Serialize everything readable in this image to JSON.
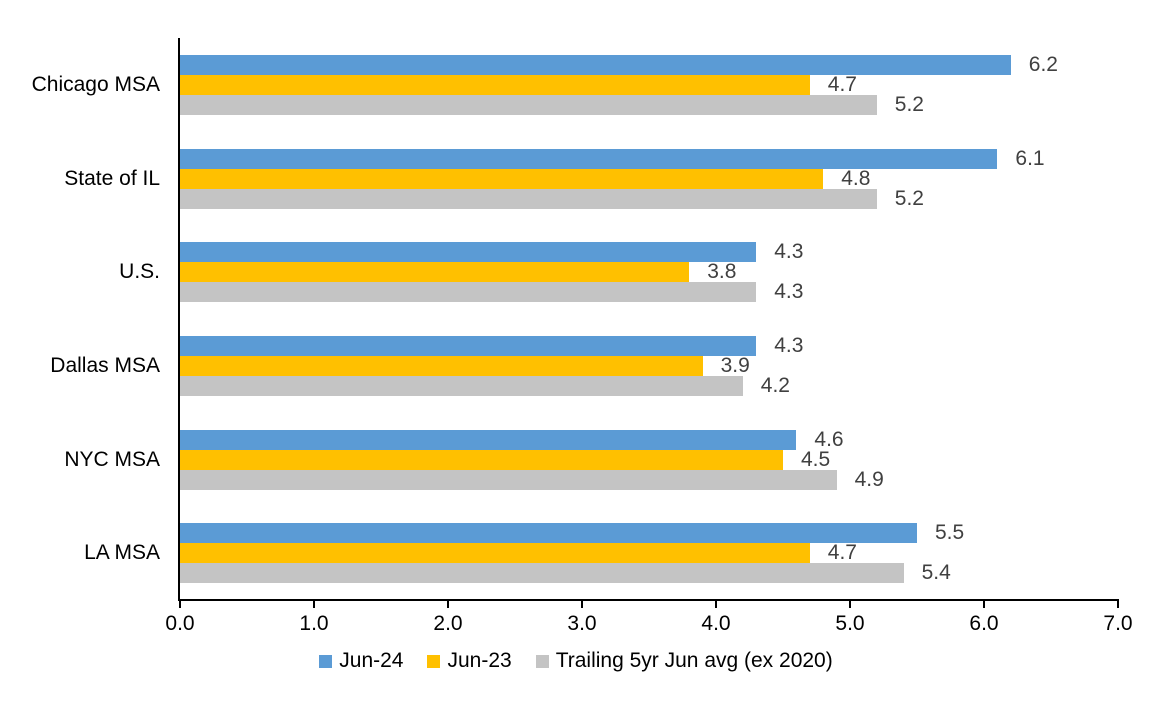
{
  "chart_data": {
    "type": "bar",
    "orientation": "horizontal",
    "title": "",
    "categories": [
      "Chicago MSA",
      "State of IL",
      "U.S.",
      "Dallas MSA",
      "NYC MSA",
      "LA MSA"
    ],
    "series": [
      {
        "name": "Jun-24",
        "color": "#5B9BD5",
        "values": [
          6.2,
          6.1,
          4.3,
          4.3,
          4.6,
          5.5
        ]
      },
      {
        "name": "Jun-23",
        "color": "#FFC000",
        "values": [
          4.7,
          4.8,
          3.8,
          3.9,
          4.5,
          4.7
        ]
      },
      {
        "name": "Trailing 5yr Jun avg (ex 2020)",
        "color": "#C4C4C4",
        "values": [
          5.2,
          5.2,
          4.3,
          4.2,
          4.9,
          5.4
        ]
      }
    ],
    "xlim": [
      0,
      7
    ],
    "x_tick_labels": [
      "0.0",
      "1.0",
      "2.0",
      "3.0",
      "4.0",
      "5.0",
      "6.0",
      "7.0"
    ],
    "xlabel": "",
    "ylabel": "",
    "grid": false,
    "legend_position": "bottom",
    "data_labels_shown": true,
    "colors": {
      "axis": "#000000",
      "data_label": "#404040",
      "background": "#FFFFFF"
    }
  }
}
